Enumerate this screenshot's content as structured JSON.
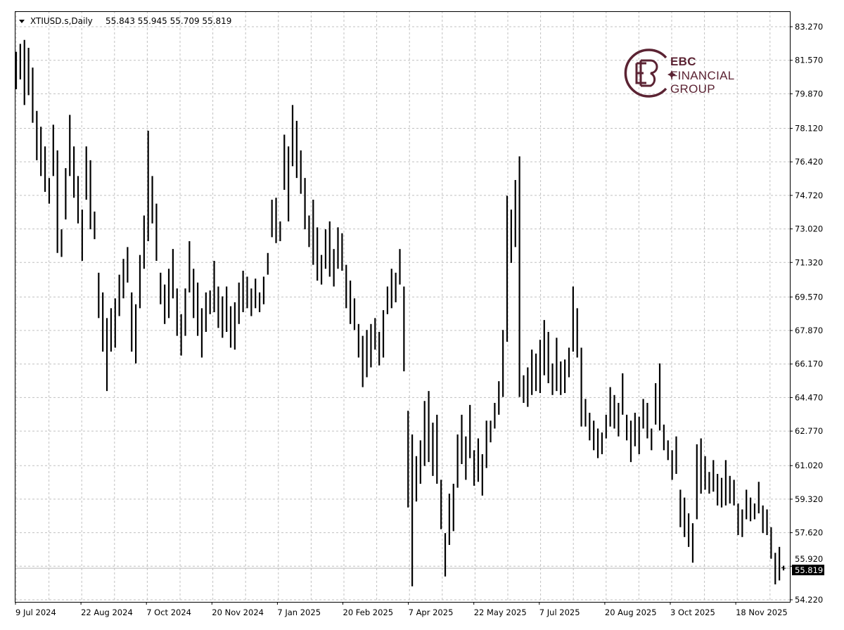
{
  "header": {
    "symbol": "XTIUSD.s,Daily",
    "ohlc": "55.843 55.945 55.709 55.819"
  },
  "logo": {
    "line1": "EBC",
    "line2": "FINANCIAL",
    "line3": "GROUP",
    "color": "#5b2333"
  },
  "chart_data": {
    "type": "ohlc-bar",
    "title": "XTIUSD.s,Daily",
    "last_bar": {
      "open": 55.843,
      "high": 55.945,
      "low": 55.709,
      "close": 55.819
    },
    "current_price": "55.819",
    "ylim": [
      54.22,
      83.27
    ],
    "y_ticks": [
      "83.270",
      "81.570",
      "79.870",
      "78.120",
      "76.420",
      "74.720",
      "73.020",
      "71.320",
      "69.570",
      "67.870",
      "66.170",
      "64.470",
      "62.770",
      "61.020",
      "59.320",
      "57.620",
      "55.920",
      "54.220"
    ],
    "x_ticks": [
      "9 Jul 2024",
      "22 Aug 2024",
      "7 Oct 2024",
      "20 Nov 2024",
      "7 Jan 2025",
      "20 Feb 2025",
      "7 Apr 2025",
      "22 May 2025",
      "7 Jul 2025",
      "20 Aug 2025",
      "3 Oct 2025",
      "18 Nov 2025"
    ],
    "grid": true,
    "bar_color": "#000000",
    "bars_high_low": [
      [
        82.0,
        80.1
      ],
      [
        82.4,
        80.6
      ],
      [
        82.6,
        79.3
      ],
      [
        82.2,
        79.8
      ],
      [
        81.2,
        78.4
      ],
      [
        79.0,
        76.5
      ],
      [
        78.2,
        75.7
      ],
      [
        77.2,
        74.9
      ],
      [
        75.6,
        74.3
      ],
      [
        78.3,
        75.7
      ],
      [
        77.0,
        71.8
      ],
      [
        73.0,
        71.6
      ],
      [
        76.1,
        73.5
      ],
      [
        78.8,
        75.7
      ],
      [
        77.2,
        74.6
      ],
      [
        75.7,
        73.3
      ],
      [
        74.0,
        71.4
      ],
      [
        77.2,
        74.5
      ],
      [
        76.5,
        73.0
      ],
      [
        73.9,
        72.5
      ],
      [
        70.8,
        68.5
      ],
      [
        69.8,
        66.8
      ],
      [
        68.5,
        64.8
      ],
      [
        69.0,
        66.8
      ],
      [
        69.5,
        67.0
      ],
      [
        70.7,
        68.6
      ],
      [
        71.5,
        69.5
      ],
      [
        72.1,
        70.3
      ],
      [
        69.8,
        66.8
      ],
      [
        69.2,
        66.2
      ],
      [
        71.7,
        69.0
      ],
      [
        73.7,
        71.0
      ],
      [
        78.0,
        72.4
      ],
      [
        75.7,
        73.3
      ],
      [
        74.3,
        71.4
      ],
      [
        70.8,
        69.2
      ],
      [
        70.2,
        68.2
      ],
      [
        71.0,
        68.5
      ],
      [
        72.0,
        69.5
      ],
      [
        70.0,
        67.6
      ],
      [
        68.7,
        66.6
      ],
      [
        70.0,
        67.6
      ],
      [
        72.4,
        69.8
      ],
      [
        71.0,
        68.5
      ],
      [
        70.3,
        67.6
      ],
      [
        69.0,
        66.5
      ],
      [
        69.8,
        67.8
      ],
      [
        69.9,
        68.7
      ],
      [
        71.4,
        68.8
      ],
      [
        70.1,
        68.0
      ],
      [
        69.6,
        67.5
      ],
      [
        70.1,
        67.8
      ],
      [
        69.1,
        67.0
      ],
      [
        69.3,
        66.9
      ],
      [
        70.3,
        68.2
      ],
      [
        70.9,
        68.8
      ],
      [
        70.6,
        69.0
      ],
      [
        70.0,
        68.6
      ],
      [
        70.5,
        69.0
      ],
      [
        69.8,
        68.8
      ],
      [
        70.6,
        69.2
      ],
      [
        71.8,
        70.7
      ],
      [
        74.5,
        72.6
      ],
      [
        74.6,
        72.3
      ],
      [
        73.4,
        72.4
      ],
      [
        77.8,
        75.0
      ],
      [
        77.2,
        73.4
      ],
      [
        79.3,
        76.2
      ],
      [
        78.5,
        75.6
      ],
      [
        77.0,
        74.8
      ],
      [
        75.6,
        73.0
      ],
      [
        73.7,
        72.1
      ],
      [
        74.5,
        71.2
      ],
      [
        73.1,
        70.4
      ],
      [
        71.7,
        70.2
      ],
      [
        73.0,
        71.0
      ],
      [
        73.4,
        70.6
      ],
      [
        72.0,
        70.1
      ],
      [
        73.1,
        71.0
      ],
      [
        72.8,
        70.9
      ],
      [
        71.2,
        69.0
      ],
      [
        70.4,
        68.2
      ],
      [
        69.5,
        67.9
      ],
      [
        68.2,
        66.5
      ],
      [
        67.6,
        65.0
      ],
      [
        67.9,
        65.5
      ],
      [
        68.2,
        66.0
      ],
      [
        68.5,
        66.9
      ],
      [
        67.8,
        66.1
      ],
      [
        68.9,
        66.5
      ],
      [
        70.1,
        68.7
      ],
      [
        71.0,
        69.0
      ],
      [
        70.8,
        69.3
      ],
      [
        72.0,
        70.2
      ],
      [
        70.1,
        65.8
      ],
      [
        63.8,
        58.9
      ],
      [
        62.6,
        54.9
      ],
      [
        61.5,
        59.2
      ],
      [
        62.3,
        60.1
      ],
      [
        64.3,
        61.0
      ],
      [
        64.8,
        61.2
      ],
      [
        63.2,
        60.5
      ],
      [
        63.6,
        60.1
      ],
      [
        60.3,
        57.8
      ],
      [
        57.6,
        55.4
      ],
      [
        59.6,
        57.0
      ],
      [
        60.1,
        57.7
      ],
      [
        62.6,
        59.9
      ],
      [
        63.6,
        61.1
      ],
      [
        62.5,
        60.3
      ],
      [
        64.1,
        61.4
      ],
      [
        61.8,
        60.0
      ],
      [
        62.4,
        60.2
      ],
      [
        61.6,
        59.5
      ],
      [
        63.3,
        60.9
      ],
      [
        63.3,
        62.2
      ],
      [
        64.2,
        62.9
      ],
      [
        65.3,
        63.6
      ],
      [
        67.9,
        64.5
      ],
      [
        74.7,
        67.3
      ],
      [
        74.0,
        71.3
      ],
      [
        75.5,
        72.1
      ],
      [
        76.7,
        64.5
      ],
      [
        65.6,
        64.2
      ],
      [
        66.0,
        64.0
      ],
      [
        66.9,
        64.6
      ],
      [
        66.7,
        64.8
      ],
      [
        67.4,
        64.7
      ],
      [
        68.4,
        65.6
      ],
      [
        67.8,
        65.2
      ],
      [
        66.2,
        64.6
      ],
      [
        67.5,
        64.8
      ],
      [
        66.3,
        64.6
      ],
      [
        66.4,
        64.7
      ],
      [
        67.0,
        65.5
      ],
      [
        70.1,
        66.8
      ],
      [
        69.0,
        66.5
      ],
      [
        67.0,
        63.0
      ],
      [
        64.4,
        63.0
      ],
      [
        63.7,
        62.3
      ],
      [
        63.3,
        61.8
      ],
      [
        62.9,
        61.4
      ],
      [
        62.7,
        61.6
      ],
      [
        63.6,
        62.4
      ],
      [
        65.0,
        63.0
      ],
      [
        64.6,
        62.9
      ],
      [
        64.2,
        62.5
      ],
      [
        65.7,
        63.6
      ],
      [
        63.6,
        62.3
      ],
      [
        63.3,
        61.2
      ],
      [
        63.7,
        62.0
      ],
      [
        63.5,
        61.6
      ],
      [
        64.4,
        62.9
      ],
      [
        64.2,
        62.4
      ],
      [
        62.9,
        61.8
      ],
      [
        65.2,
        63.1
      ],
      [
        66.2,
        62.8
      ],
      [
        63.1,
        61.8
      ],
      [
        62.3,
        61.3
      ],
      [
        61.8,
        60.3
      ],
      [
        62.5,
        60.6
      ],
      [
        59.8,
        57.9
      ],
      [
        59.4,
        57.4
      ],
      [
        58.6,
        56.9
      ],
      [
        58.1,
        56.1
      ],
      [
        62.1,
        58.3
      ],
      [
        62.4,
        59.6
      ],
      [
        61.5,
        59.8
      ],
      [
        60.7,
        59.6
      ],
      [
        61.3,
        59.7
      ],
      [
        60.6,
        59.0
      ],
      [
        60.4,
        58.9
      ],
      [
        61.3,
        59.0
      ],
      [
        60.5,
        59.1
      ],
      [
        60.3,
        59.0
      ],
      [
        59.1,
        57.5
      ],
      [
        58.8,
        57.4
      ],
      [
        59.8,
        58.3
      ],
      [
        59.4,
        58.2
      ],
      [
        59.1,
        58.3
      ],
      [
        60.2,
        58.6
      ],
      [
        59.0,
        57.6
      ],
      [
        58.8,
        57.5
      ],
      [
        57.9,
        56.3
      ],
      [
        56.6,
        55.0
      ],
      [
        56.9,
        55.2
      ],
      [
        55.945,
        55.709
      ]
    ]
  }
}
